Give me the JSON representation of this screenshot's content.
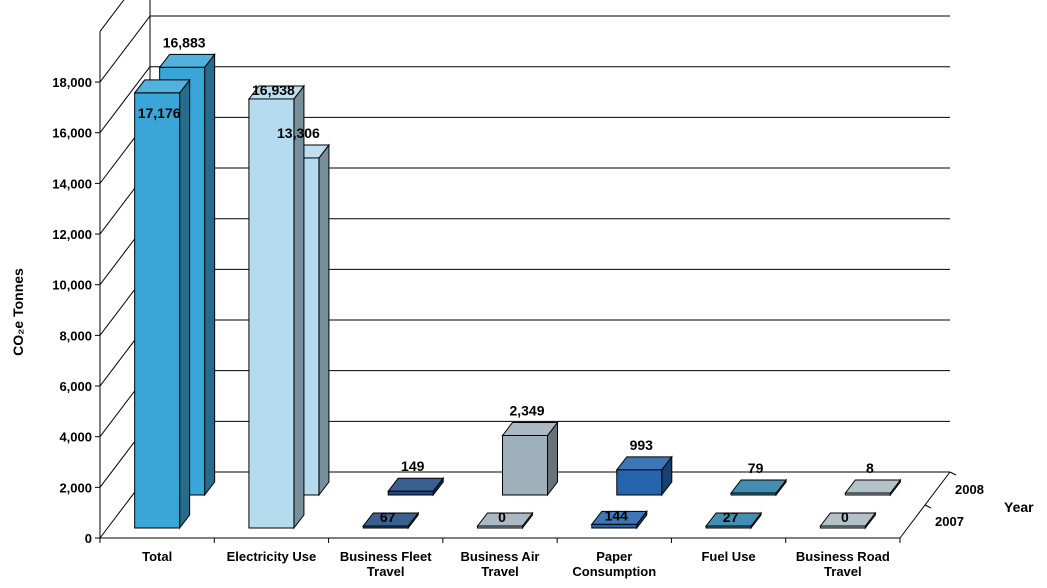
{
  "chart_data": {
    "type": "bar",
    "ylabel": "CO₂e Tonnes",
    "zlabel": "Year",
    "ylim": [
      0,
      18000
    ],
    "y_ticks": [
      "0",
      "2,000",
      "4,000",
      "6,000",
      "8,000",
      "10,000",
      "12,000",
      "14,000",
      "16,000",
      "18,000"
    ],
    "categories": [
      [
        "Total"
      ],
      [
        "Electricity Use"
      ],
      [
        "Business Fleet",
        "Travel"
      ],
      [
        "Business Air",
        "Travel"
      ],
      [
        "Paper",
        "Consumption"
      ],
      [
        "Fuel Use"
      ],
      [
        "Business Road",
        "Travel"
      ]
    ],
    "series": [
      {
        "name": "2007",
        "values": [
          17176,
          16938,
          67,
          0,
          144,
          27,
          0
        ],
        "labels": [
          "17,176",
          "16,938",
          "67",
          "0",
          "144",
          "27",
          "0"
        ]
      },
      {
        "name": "2008",
        "values": [
          16883,
          13306,
          149,
          2349,
          993,
          79,
          8
        ],
        "labels": [
          "16,883",
          "13,306",
          "149",
          "2,349",
          "993",
          "79",
          "8"
        ]
      }
    ],
    "colors": [
      "#3aa6d8",
      "#b5dcee",
      "#1f4a80",
      "#9fb0bd",
      "#2464ad",
      "#2b7fa6",
      "#a9b8c2"
    ],
    "grid": true
  }
}
